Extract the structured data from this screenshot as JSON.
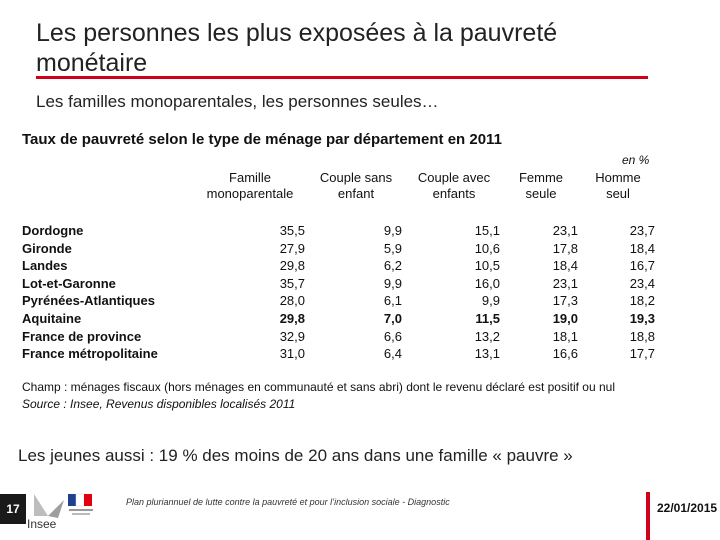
{
  "slide": {
    "title": "Les personnes les plus exposées à la pauvreté monétaire",
    "subtitle": "Les familles monoparentales, les personnes seules…",
    "youth_note": "Les jeunes aussi : 19 % des moins de 20 ans dans une famille « pauvre »",
    "page_number": "17",
    "logo_text": "Insee",
    "footer_caption": "Plan pluriannuel de lutte contre la pauvreté et pour l’inclusion sociale - Diagnostic",
    "date": "22/01/2015",
    "accent_color": "#d0021b"
  },
  "table": {
    "title": "Taux de pauvreté selon le type de ménage par département en 2011",
    "unit": "en %",
    "columns": [
      {
        "line1": "Famille",
        "line2": "monoparentale"
      },
      {
        "line1": "Couple sans",
        "line2": "enfant"
      },
      {
        "line1": "Couple avec",
        "line2": "enfants"
      },
      {
        "line1": "Femme",
        "line2": "seule"
      },
      {
        "line1": "Homme",
        "line2": "seul"
      }
    ],
    "rows": [
      {
        "label": "Dordogne",
        "values": [
          "35,5",
          "9,9",
          "15,1",
          "23,1",
          "23,7"
        ]
      },
      {
        "label": "Gironde",
        "values": [
          "27,9",
          "5,9",
          "10,6",
          "17,8",
          "18,4"
        ]
      },
      {
        "label": "Landes",
        "values": [
          "29,8",
          "6,2",
          "10,5",
          "18,4",
          "16,7"
        ]
      },
      {
        "label": "Lot-et-Garonne",
        "values": [
          "35,7",
          "9,9",
          "16,0",
          "23,1",
          "23,4"
        ]
      },
      {
        "label": "Pyrénées-Atlantiques",
        "values": [
          "28,0",
          "6,1",
          "9,9",
          "17,3",
          "18,2"
        ]
      },
      {
        "label": "Aquitaine",
        "values": [
          "29,8",
          "7,0",
          "11,5",
          "19,0",
          "19,3"
        ]
      },
      {
        "label": "France de province",
        "values": [
          "32,9",
          "6,6",
          "13,2",
          "18,1",
          "18,8"
        ]
      },
      {
        "label": "France métropolitaine",
        "values": [
          "31,0",
          "6,4",
          "13,1",
          "16,6",
          "17,7"
        ]
      }
    ],
    "note_champ": "Champ : ménages fiscaux (hors ménages en communauté et sans abri) dont le revenu déclaré est positif ou nul",
    "note_source": "Source : Insee, Revenus disponibles localisés 2011"
  }
}
